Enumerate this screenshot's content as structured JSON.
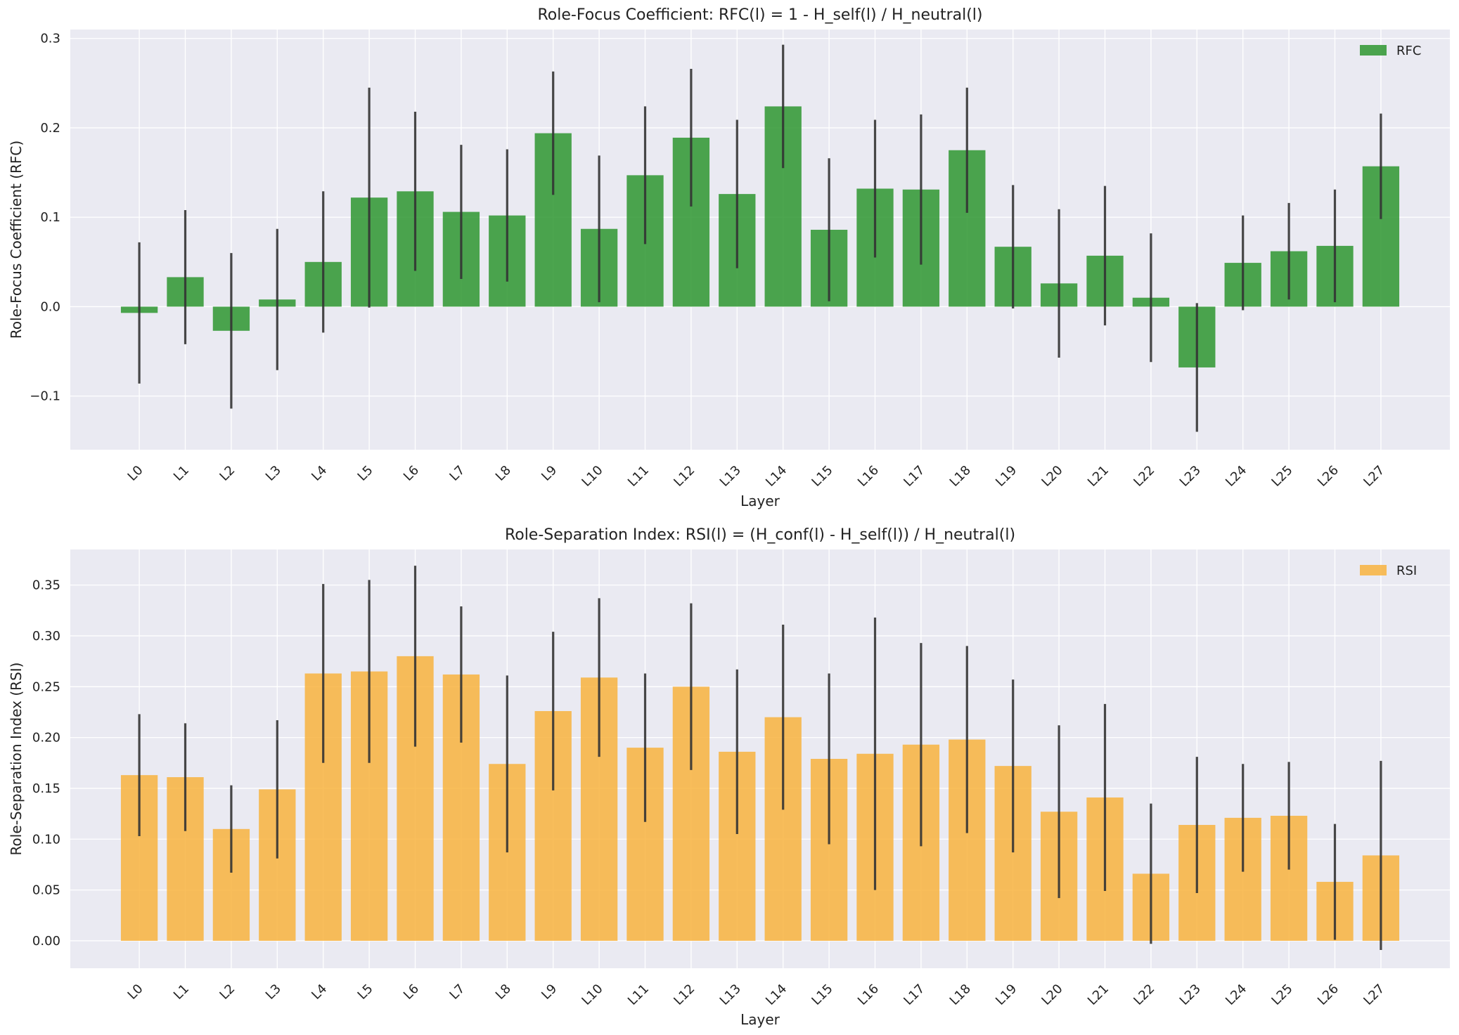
{
  "colors": {
    "plot_bg": "#EAEAF2",
    "grid": "#FFFFFF",
    "error": "#333333",
    "rfc_bar": "#2E9630",
    "rsi_bar": "#F8B33E"
  },
  "chart_data": [
    {
      "type": "bar",
      "title": "Role-Focus Coefficient: RFC(l) = 1 - H_self(l) / H_neutral(l)",
      "xlabel": "Layer",
      "ylabel": "Role-Focus Coefficient (RFC)",
      "categories": [
        "L0",
        "L1",
        "L2",
        "L3",
        "L4",
        "L5",
        "L6",
        "L7",
        "L8",
        "L9",
        "L10",
        "L11",
        "L12",
        "L13",
        "L14",
        "L15",
        "L16",
        "L17",
        "L18",
        "L19",
        "L20",
        "L21",
        "L22",
        "L23",
        "L24",
        "L25",
        "L26",
        "L27"
      ],
      "series": [
        {
          "name": "RFC",
          "values": [
            -0.007,
            0.033,
            -0.027,
            0.008,
            0.05,
            0.122,
            0.129,
            0.106,
            0.102,
            0.194,
            0.087,
            0.147,
            0.189,
            0.126,
            0.224,
            0.086,
            0.132,
            0.131,
            0.175,
            0.067,
            0.026,
            0.057,
            0.01,
            -0.068,
            0.049,
            0.062,
            0.068,
            0.157
          ],
          "errors": [
            0.079,
            0.075,
            0.087,
            0.079,
            0.079,
            0.123,
            0.089,
            0.075,
            0.074,
            0.069,
            0.082,
            0.077,
            0.077,
            0.083,
            0.069,
            0.08,
            0.077,
            0.084,
            0.07,
            0.069,
            0.083,
            0.078,
            0.072,
            0.072,
            0.053,
            0.054,
            0.063,
            0.059
          ]
        }
      ],
      "ylim": [
        -0.16,
        0.31
      ],
      "yticks": [
        -0.1,
        0.0,
        0.1,
        0.2,
        0.3
      ],
      "ytick_labels": [
        "−0.1",
        "0.0",
        "0.1",
        "0.2",
        "0.3"
      ],
      "grid": true,
      "legend": "top-right"
    },
    {
      "type": "bar",
      "title": "Role-Separation Index: RSI(l) = (H_conf(l) - H_self(l)) / H_neutral(l)",
      "xlabel": "Layer",
      "ylabel": "Role-Separation Index (RSI)",
      "categories": [
        "L0",
        "L1",
        "L2",
        "L3",
        "L4",
        "L5",
        "L6",
        "L7",
        "L8",
        "L9",
        "L10",
        "L11",
        "L12",
        "L13",
        "L14",
        "L15",
        "L16",
        "L17",
        "L18",
        "L19",
        "L20",
        "L21",
        "L22",
        "L23",
        "L24",
        "L25",
        "L26",
        "L27"
      ],
      "series": [
        {
          "name": "RSI",
          "values": [
            0.163,
            0.161,
            0.11,
            0.149,
            0.263,
            0.265,
            0.28,
            0.262,
            0.174,
            0.226,
            0.259,
            0.19,
            0.25,
            0.186,
            0.22,
            0.179,
            0.184,
            0.193,
            0.198,
            0.172,
            0.127,
            0.141,
            0.066,
            0.114,
            0.121,
            0.123,
            0.058,
            0.084
          ],
          "errors": [
            0.06,
            0.053,
            0.043,
            0.068,
            0.088,
            0.09,
            0.089,
            0.067,
            0.087,
            0.078,
            0.078,
            0.073,
            0.082,
            0.081,
            0.091,
            0.084,
            0.134,
            0.1,
            0.092,
            0.085,
            0.085,
            0.092,
            0.069,
            0.067,
            0.053,
            0.053,
            0.057,
            0.093
          ]
        }
      ],
      "ylim": [
        -0.027,
        0.385
      ],
      "yticks": [
        0.0,
        0.05,
        0.1,
        0.15,
        0.2,
        0.25,
        0.3,
        0.35
      ],
      "ytick_labels": [
        "0.00",
        "0.05",
        "0.10",
        "0.15",
        "0.20",
        "0.25",
        "0.30",
        "0.35"
      ],
      "grid": true,
      "legend": "top-right"
    }
  ]
}
